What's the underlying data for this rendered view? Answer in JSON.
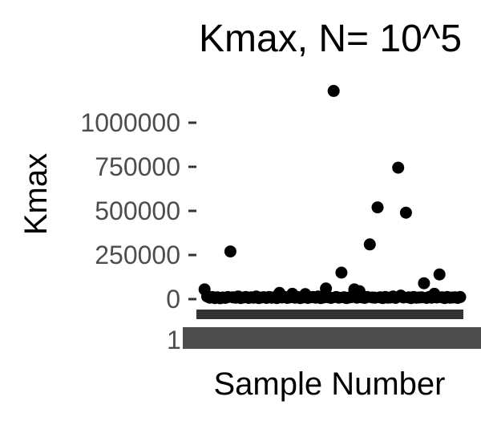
{
  "chart_data": {
    "type": "scatter",
    "title": "Kmax, N= 10^5",
    "xlabel": "Sample Number",
    "ylabel": "Kmax",
    "yticks": [
      0,
      250000,
      500000,
      750000,
      1000000
    ],
    "ytick_labels": [
      "0",
      "250000",
      "500000",
      "750000",
      "1000000"
    ],
    "xtick_labels": [
      "1"
    ],
    "ylim": [
      -50000,
      1200000
    ],
    "xlim": [
      0,
      100
    ],
    "grid": false,
    "legend": "none",
    "point_color": "#000000",
    "x": [
      1,
      2,
      3,
      4,
      5,
      6,
      7,
      8,
      9,
      10,
      11,
      12,
      13,
      14,
      15,
      16,
      17,
      18,
      19,
      20,
      21,
      22,
      23,
      24,
      25,
      26,
      27,
      28,
      29,
      30,
      31,
      32,
      33,
      34,
      35,
      36,
      37,
      38,
      39,
      40,
      41,
      42,
      43,
      44,
      45,
      46,
      47,
      48,
      49,
      50,
      51,
      52,
      53,
      54,
      55,
      56,
      57,
      58,
      59,
      60,
      61,
      62,
      63,
      64,
      65,
      66,
      67,
      68,
      69,
      70,
      71,
      72,
      73,
      74,
      75,
      76,
      77,
      78,
      79,
      80,
      81,
      82,
      83,
      84,
      85,
      86,
      87,
      88,
      89,
      90,
      91,
      92,
      93,
      94,
      95,
      96,
      97,
      98,
      99,
      100
    ],
    "y": [
      55000,
      15000,
      8000,
      12000,
      6000,
      10000,
      5000,
      9000,
      7000,
      12000,
      270000,
      10000,
      8000,
      15000,
      6000,
      9000,
      12000,
      7000,
      10000,
      8000,
      15000,
      6000,
      9000,
      11000,
      7000,
      12000,
      8000,
      10000,
      6000,
      35000,
      9000,
      12000,
      7000,
      10000,
      30000,
      8000,
      12000,
      6000,
      9000,
      28000,
      7000,
      10000,
      12000,
      8000,
      15000,
      6000,
      9000,
      60000,
      10000,
      7000,
      1180000,
      12000,
      8000,
      150000,
      10000,
      6000,
      9000,
      12000,
      55000,
      8000,
      45000,
      10000,
      7000,
      12000,
      310000,
      9000,
      8000,
      520000,
      10000,
      6000,
      12000,
      8000,
      9000,
      15000,
      7000,
      745000,
      20000,
      9000,
      490000,
      10000,
      6000,
      12000,
      8000,
      9000,
      10000,
      90000,
      7000,
      12000,
      8000,
      30000,
      9000,
      140000,
      10000,
      6000,
      12000,
      8000,
      9000,
      10000,
      7000,
      12000
    ]
  }
}
